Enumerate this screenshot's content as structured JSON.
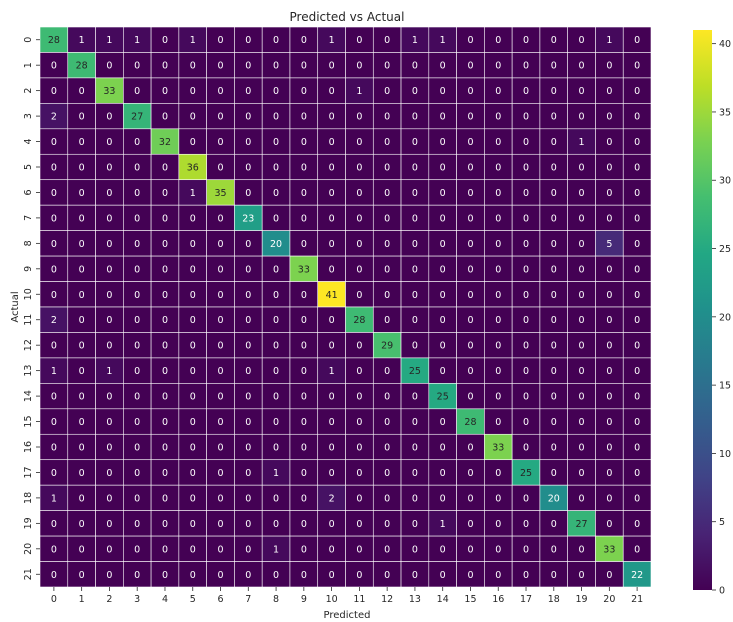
{
  "chart_data": {
    "type": "heatmap",
    "title": "Predicted vs Actual",
    "xlabel": "Predicted",
    "ylabel": "Actual",
    "x_categories": [
      "0",
      "1",
      "2",
      "3",
      "4",
      "5",
      "6",
      "7",
      "8",
      "9",
      "10",
      "11",
      "12",
      "13",
      "14",
      "15",
      "16",
      "17",
      "18",
      "19",
      "20",
      "21"
    ],
    "y_categories": [
      "0",
      "1",
      "2",
      "3",
      "4",
      "5",
      "6",
      "7",
      "8",
      "9",
      "10",
      "11",
      "12",
      "13",
      "14",
      "15",
      "16",
      "17",
      "18",
      "19",
      "20",
      "21"
    ],
    "values": [
      [
        28,
        1,
        1,
        1,
        0,
        1,
        0,
        0,
        0,
        0,
        1,
        0,
        0,
        1,
        1,
        0,
        0,
        0,
        0,
        0,
        1,
        0
      ],
      [
        0,
        28,
        0,
        0,
        0,
        0,
        0,
        0,
        0,
        0,
        0,
        0,
        0,
        0,
        0,
        0,
        0,
        0,
        0,
        0,
        0,
        0
      ],
      [
        0,
        0,
        33,
        0,
        0,
        0,
        0,
        0,
        0,
        0,
        0,
        1,
        0,
        0,
        0,
        0,
        0,
        0,
        0,
        0,
        0,
        0
      ],
      [
        2,
        0,
        0,
        27,
        0,
        0,
        0,
        0,
        0,
        0,
        0,
        0,
        0,
        0,
        0,
        0,
        0,
        0,
        0,
        0,
        0,
        0
      ],
      [
        0,
        0,
        0,
        0,
        32,
        0,
        0,
        0,
        0,
        0,
        0,
        0,
        0,
        0,
        0,
        0,
        0,
        0,
        0,
        1,
        0,
        0
      ],
      [
        0,
        0,
        0,
        0,
        0,
        36,
        0,
        0,
        0,
        0,
        0,
        0,
        0,
        0,
        0,
        0,
        0,
        0,
        0,
        0,
        0,
        0
      ],
      [
        0,
        0,
        0,
        0,
        0,
        1,
        35,
        0,
        0,
        0,
        0,
        0,
        0,
        0,
        0,
        0,
        0,
        0,
        0,
        0,
        0,
        0
      ],
      [
        0,
        0,
        0,
        0,
        0,
        0,
        0,
        23,
        0,
        0,
        0,
        0,
        0,
        0,
        0,
        0,
        0,
        0,
        0,
        0,
        0,
        0
      ],
      [
        0,
        0,
        0,
        0,
        0,
        0,
        0,
        0,
        20,
        0,
        0,
        0,
        0,
        0,
        0,
        0,
        0,
        0,
        0,
        0,
        5,
        0
      ],
      [
        0,
        0,
        0,
        0,
        0,
        0,
        0,
        0,
        0,
        33,
        0,
        0,
        0,
        0,
        0,
        0,
        0,
        0,
        0,
        0,
        0,
        0
      ],
      [
        0,
        0,
        0,
        0,
        0,
        0,
        0,
        0,
        0,
        0,
        41,
        0,
        0,
        0,
        0,
        0,
        0,
        0,
        0,
        0,
        0,
        0
      ],
      [
        2,
        0,
        0,
        0,
        0,
        0,
        0,
        0,
        0,
        0,
        0,
        28,
        0,
        0,
        0,
        0,
        0,
        0,
        0,
        0,
        0,
        0
      ],
      [
        0,
        0,
        0,
        0,
        0,
        0,
        0,
        0,
        0,
        0,
        0,
        0,
        29,
        0,
        0,
        0,
        0,
        0,
        0,
        0,
        0,
        0
      ],
      [
        1,
        0,
        1,
        0,
        0,
        0,
        0,
        0,
        0,
        0,
        1,
        0,
        0,
        25,
        0,
        0,
        0,
        0,
        0,
        0,
        0,
        0
      ],
      [
        0,
        0,
        0,
        0,
        0,
        0,
        0,
        0,
        0,
        0,
        0,
        0,
        0,
        0,
        25,
        0,
        0,
        0,
        0,
        0,
        0,
        0
      ],
      [
        0,
        0,
        0,
        0,
        0,
        0,
        0,
        0,
        0,
        0,
        0,
        0,
        0,
        0,
        0,
        28,
        0,
        0,
        0,
        0,
        0,
        0
      ],
      [
        0,
        0,
        0,
        0,
        0,
        0,
        0,
        0,
        0,
        0,
        0,
        0,
        0,
        0,
        0,
        0,
        33,
        0,
        0,
        0,
        0,
        0
      ],
      [
        0,
        0,
        0,
        0,
        0,
        0,
        0,
        0,
        1,
        0,
        0,
        0,
        0,
        0,
        0,
        0,
        0,
        25,
        0,
        0,
        0,
        0
      ],
      [
        1,
        0,
        0,
        0,
        0,
        0,
        0,
        0,
        0,
        0,
        2,
        0,
        0,
        0,
        0,
        0,
        0,
        0,
        20,
        0,
        0,
        0
      ],
      [
        0,
        0,
        0,
        0,
        0,
        0,
        0,
        0,
        0,
        0,
        0,
        0,
        0,
        0,
        1,
        0,
        0,
        0,
        0,
        27,
        0,
        0
      ],
      [
        0,
        0,
        0,
        0,
        0,
        0,
        0,
        0,
        1,
        0,
        0,
        0,
        0,
        0,
        0,
        0,
        0,
        0,
        0,
        0,
        33,
        0
      ],
      [
        0,
        0,
        0,
        0,
        0,
        0,
        0,
        0,
        0,
        0,
        0,
        0,
        0,
        0,
        0,
        0,
        0,
        0,
        0,
        0,
        0,
        22
      ]
    ],
    "colormap": "viridis",
    "colorbar": {
      "min": 0,
      "max": 41,
      "ticks": [
        0,
        5,
        10,
        15,
        20,
        25,
        30,
        35,
        40
      ]
    },
    "grid_lines_color": "#ffffff"
  }
}
